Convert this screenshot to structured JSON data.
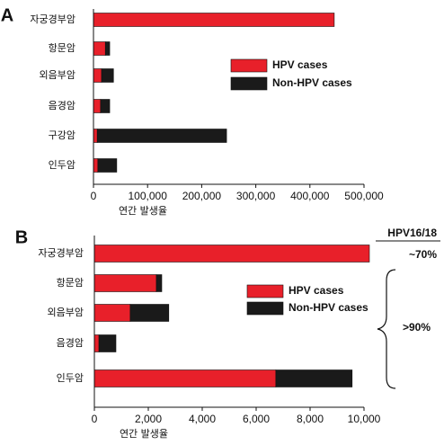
{
  "chart_data": [
    {
      "type": "stacked-bar-horizontal",
      "panel": "A",
      "categories": [
        "자궁경부암",
        "항문암",
        "외음부암",
        "음경암",
        "구강암",
        "인두암"
      ],
      "series": [
        {
          "name": "HPV cases",
          "color": "#e8202a",
          "values": [
            445000,
            22000,
            15000,
            13000,
            7000,
            8000
          ]
        },
        {
          "name": "Non-HPV cases",
          "color": "#1a1a1a",
          "values": [
            0,
            8000,
            22000,
            17000,
            239000,
            35000
          ]
        }
      ],
      "xlabel": "연간 발생율",
      "xlim": [
        0,
        500000
      ],
      "xticks": [
        0,
        {
          "value": 100000,
          "label": "100,000"
        },
        {
          "value": 200000,
          "label": "200,000"
        },
        {
          "value": 300000,
          "label": "300,000"
        },
        {
          "value": 400000,
          "label": "400,000"
        },
        {
          "value": 500000,
          "label": "500,000"
        }
      ]
    },
    {
      "type": "stacked-bar-horizontal",
      "panel": "B",
      "categories": [
        "자궁경부암",
        "항문암",
        "외음부암",
        "음경암",
        "인두암"
      ],
      "series": [
        {
          "name": "HPV cases",
          "color": "#e8202a",
          "values": [
            10200,
            2300,
            1330,
            170,
            6730
          ]
        },
        {
          "name": "Non-HPV cases",
          "color": "#1a1a1a",
          "values": [
            0,
            200,
            1430,
            630,
            2830
          ]
        }
      ],
      "xlabel": "연간 발생율",
      "xlim": [
        0,
        10000
      ],
      "xticks": [
        0,
        {
          "value": 2000,
          "label": "2,000"
        },
        {
          "value": 4000,
          "label": "4,000"
        },
        {
          "value": 6000,
          "label": "6,000"
        },
        {
          "value": 8000,
          "label": "8,000"
        },
        {
          "value": 10000,
          "label": "10,000"
        }
      ],
      "annotations": [
        "HPV16/18",
        "~70%",
        ">90%"
      ]
    }
  ]
}
